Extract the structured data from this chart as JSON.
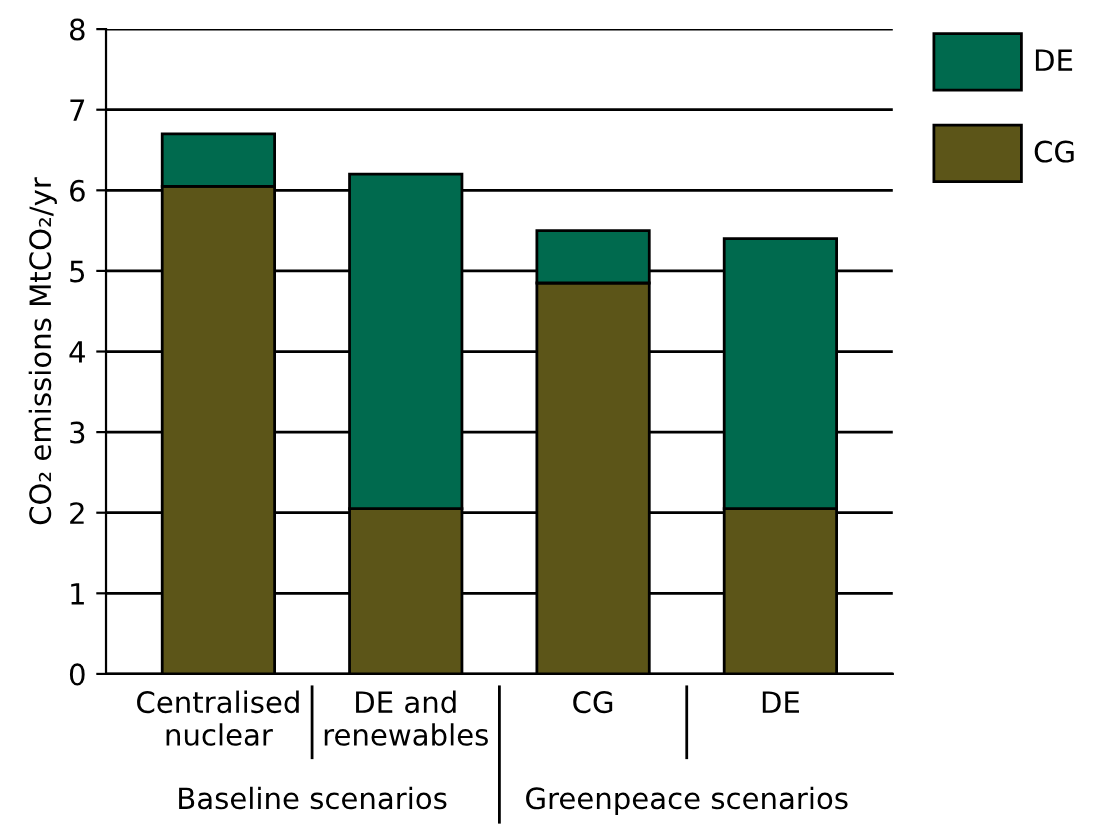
{
  "chart_data": {
    "type": "bar",
    "stacked": true,
    "categories": [
      "Centralised\nnuclear",
      "DE and\nrenewables",
      "CG",
      "DE"
    ],
    "series": [
      {
        "name": "CG",
        "color": "#5c5518",
        "values": [
          6.05,
          2.05,
          4.85,
          2.05
        ]
      },
      {
        "name": "DE",
        "color": "#006a4e",
        "values": [
          0.65,
          4.15,
          0.65,
          3.35
        ]
      }
    ],
    "ylabel": "CO₂ emissions MtCO₂/yr",
    "ylim": [
      0,
      8
    ],
    "yticks": [
      0,
      1,
      2,
      3,
      4,
      5,
      6,
      7,
      8
    ],
    "grid": "y",
    "legend": "top right",
    "annotations": [
      "Baseline scenarios",
      "Greenpeace scenarios"
    ]
  }
}
